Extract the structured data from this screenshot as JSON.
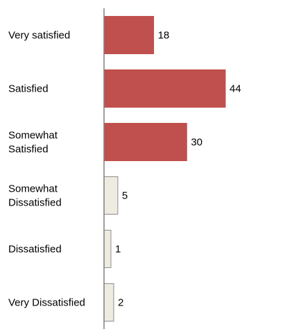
{
  "chart_data": {
    "type": "bar",
    "orientation": "horizontal",
    "categories": [
      "Very satisfied",
      "Satisfied",
      "Somewhat Satisfied",
      "Somewhat Dissatisfied",
      "Dissatisfied",
      "Very Dissatisfied"
    ],
    "category_lines": [
      [
        "Very satisfied"
      ],
      [
        "Satisfied"
      ],
      [
        "Somewhat",
        "Satisfied"
      ],
      [
        "Somewhat",
        "Dissatisfied"
      ],
      [
        "Dissatisfied"
      ],
      [
        "Very Dissatisfied"
      ]
    ],
    "values": [
      18,
      44,
      30,
      5,
      1,
      2
    ],
    "value_labels": [
      "18",
      "44",
      "30",
      "5",
      "1",
      "2"
    ],
    "xlim": [
      0,
      44
    ],
    "grid": false,
    "bar_colors": [
      "#c0504d",
      "#c0504d",
      "#c0504d",
      "#eeece1",
      "#eeece1",
      "#eeece1"
    ],
    "bar_border_colors": [
      "#c0504d",
      "#c0504d",
      "#c0504d",
      "#8c8c8c",
      "#8c8c8c",
      "#8c8c8c"
    ],
    "axis_color": "#7f7f7f"
  }
}
